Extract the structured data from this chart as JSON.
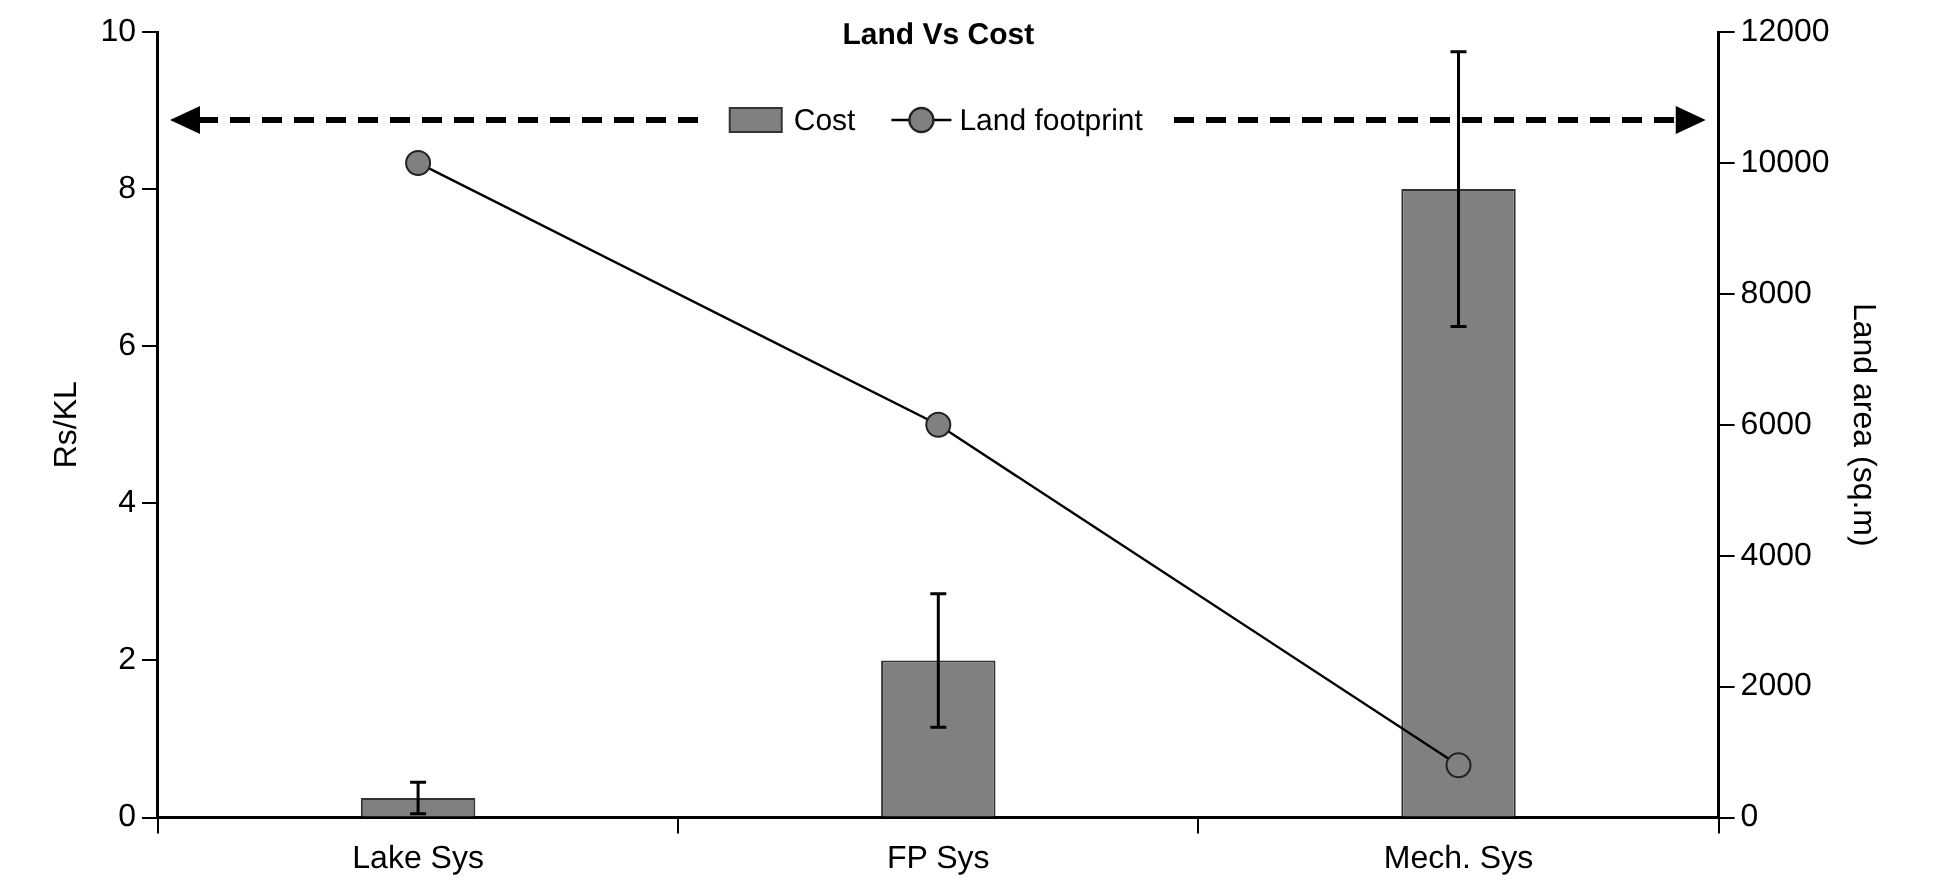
{
  "chart_data": {
    "type": "bar",
    "title": "Land Vs Cost",
    "categories": [
      "Lake Sys",
      "FP Sys",
      "Mech. Sys"
    ],
    "ylabel": "Rs/KL",
    "y2label": "Land area (sq.m)",
    "ylim": [
      0,
      10
    ],
    "yticks": [
      0,
      2,
      4,
      6,
      8,
      10
    ],
    "y2lim": [
      0,
      12000
    ],
    "y2ticks": [
      0,
      2000,
      4000,
      6000,
      8000,
      10000,
      12000
    ],
    "legend": "top",
    "grid": false,
    "marker": "circle",
    "series": [
      {
        "name": "Cost",
        "color": "#808080",
        "values": [
          0.25,
          2,
          8
        ],
        "errors": [
          0.2,
          0.85,
          1.75
        ]
      },
      {
        "name": "Land footprint",
        "type": "line",
        "axis": "y2",
        "color": "#808080",
        "values": [
          10000,
          6000,
          800
        ]
      }
    ]
  }
}
